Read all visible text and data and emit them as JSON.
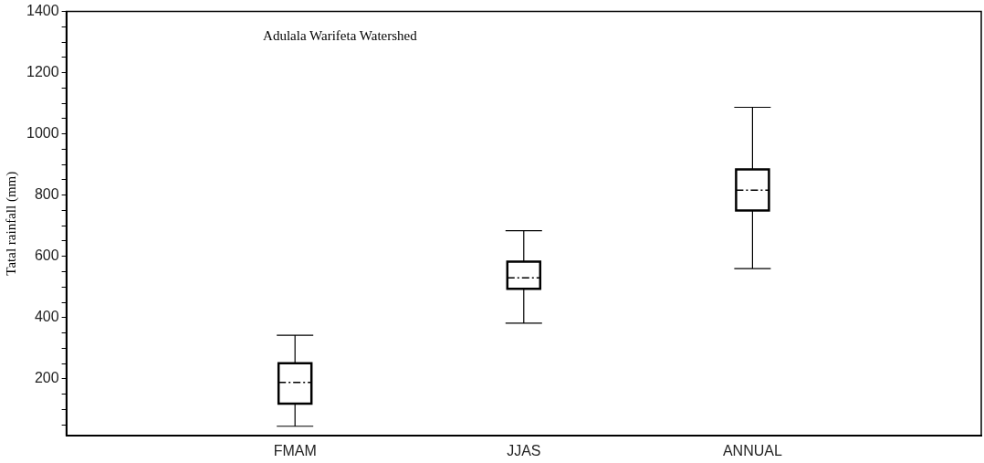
{
  "chart_data": {
    "type": "box",
    "title": "Adulala Warifeta Watershed",
    "ylabel": "Tatal rainfall (mm)",
    "categories": [
      "FMAM",
      "JJAS",
      "ANNUAL"
    ],
    "boxes": [
      {
        "low": 45,
        "q1": 119,
        "median": 188,
        "q3": 251,
        "high": 342
      },
      {
        "low": 382,
        "q1": 494,
        "median": 530,
        "q3": 583,
        "high": 684
      },
      {
        "low": 560,
        "q1": 750,
        "median": 816,
        "q3": 884,
        "high": 1087
      }
    ],
    "color": "#000000",
    "ylim": [
      15,
      1400
    ],
    "yticks": [
      {
        "value": 50,
        "label": null
      },
      {
        "value": 100,
        "label": null
      },
      {
        "value": 150,
        "label": null
      },
      200,
      {
        "value": 250,
        "label": null
      },
      {
        "value": 300,
        "label": null
      },
      {
        "value": 350,
        "label": null
      },
      400,
      {
        "value": 450,
        "label": null
      },
      {
        "value": 500,
        "label": null
      },
      {
        "value": 550,
        "label": null
      },
      600,
      {
        "value": 650,
        "label": null
      },
      {
        "value": 700,
        "label": null
      },
      {
        "value": 750,
        "label": null
      },
      800,
      {
        "value": 850,
        "label": null
      },
      {
        "value": 900,
        "label": null
      },
      {
        "value": 950,
        "label": null
      },
      1000,
      {
        "value": 1050,
        "label": null
      },
      {
        "value": 1100,
        "label": null
      },
      {
        "value": 1150,
        "label": null
      },
      1200,
      {
        "value": 1250,
        "label": null
      },
      {
        "value": 1300,
        "label": null
      },
      {
        "value": 1350,
        "label": null
      },
      1400
    ],
    "grid": false,
    "legend": false
  }
}
